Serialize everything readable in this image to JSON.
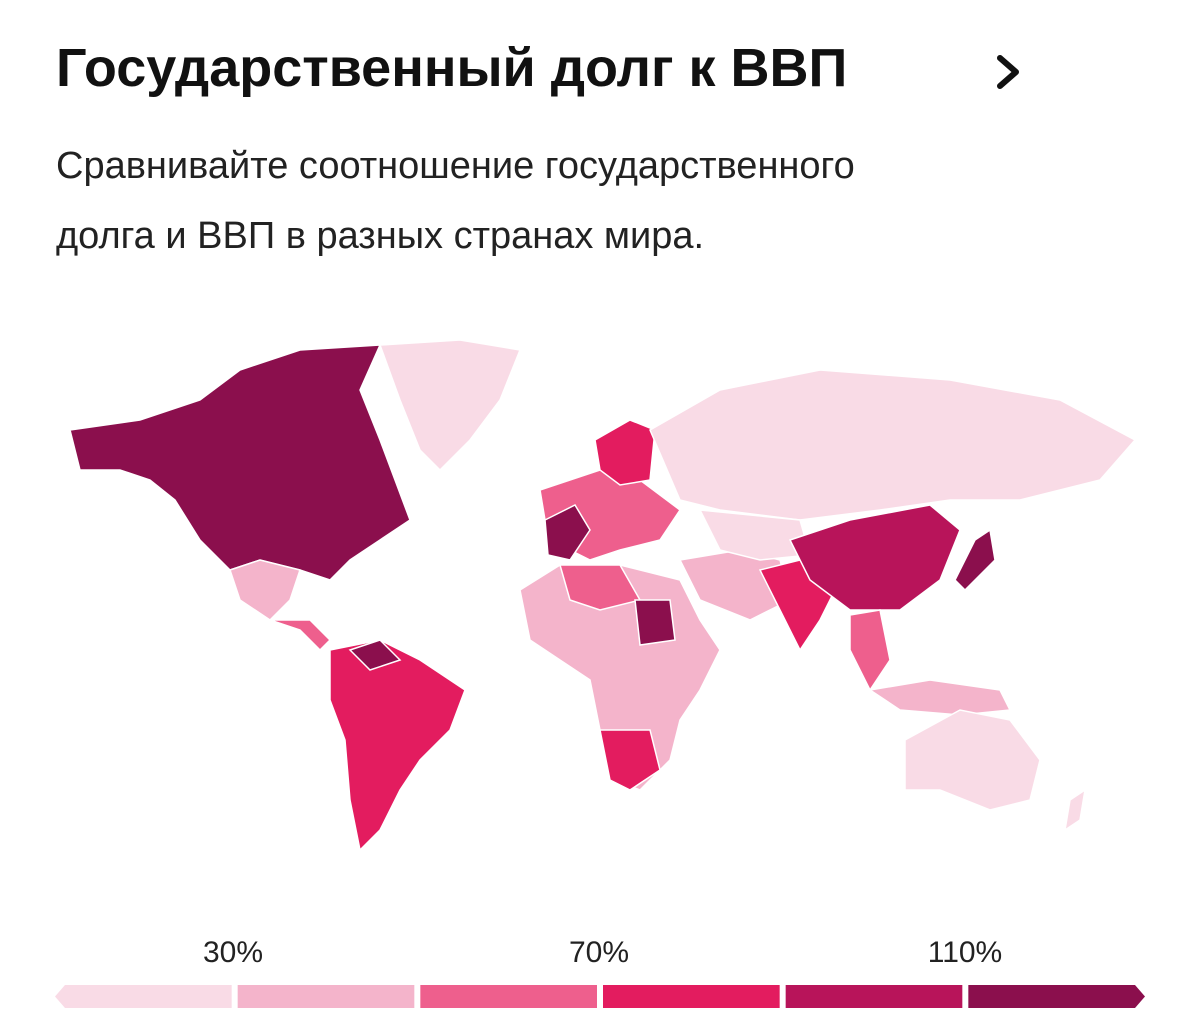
{
  "header": {
    "title": "Государственный долг к ВВП",
    "subtitle": [
      "Сравнивайте соотношение государственного",
      "долга и ВВП в разных странах мира."
    ]
  },
  "legend": {
    "labels": [
      "30%",
      "70%",
      "110%"
    ],
    "colors": [
      "#f9dbe6",
      "#f4b4cb",
      "#ee5f8d",
      "#e31c5f",
      "#b8145a",
      "#8b0f4d"
    ]
  }
}
